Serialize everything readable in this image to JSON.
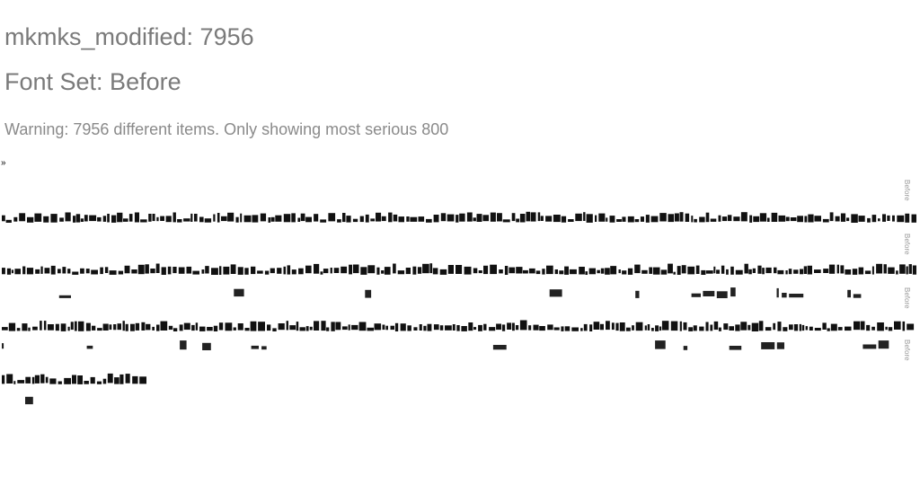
{
  "header": {
    "title": "mkmks_modified: 7956",
    "font_set": "Font Set: Before",
    "warning": "Warning: 7956 different items. Only showing most serious 800",
    "marker": "»"
  },
  "side_labels": [
    "Before",
    "Before",
    "Before",
    "Before"
  ],
  "glyph_rows": [
    {
      "density": "dense",
      "ink": "#111111"
    },
    {
      "density": "dense",
      "ink": "#111111"
    },
    {
      "density": "sparse",
      "ink": "#222222"
    },
    {
      "density": "dense",
      "ink": "#111111"
    },
    {
      "density": "sparse",
      "ink": "#222222"
    },
    {
      "density": "short",
      "ink": "#111111"
    },
    {
      "density": "sparse-short",
      "ink": "#222222"
    }
  ]
}
